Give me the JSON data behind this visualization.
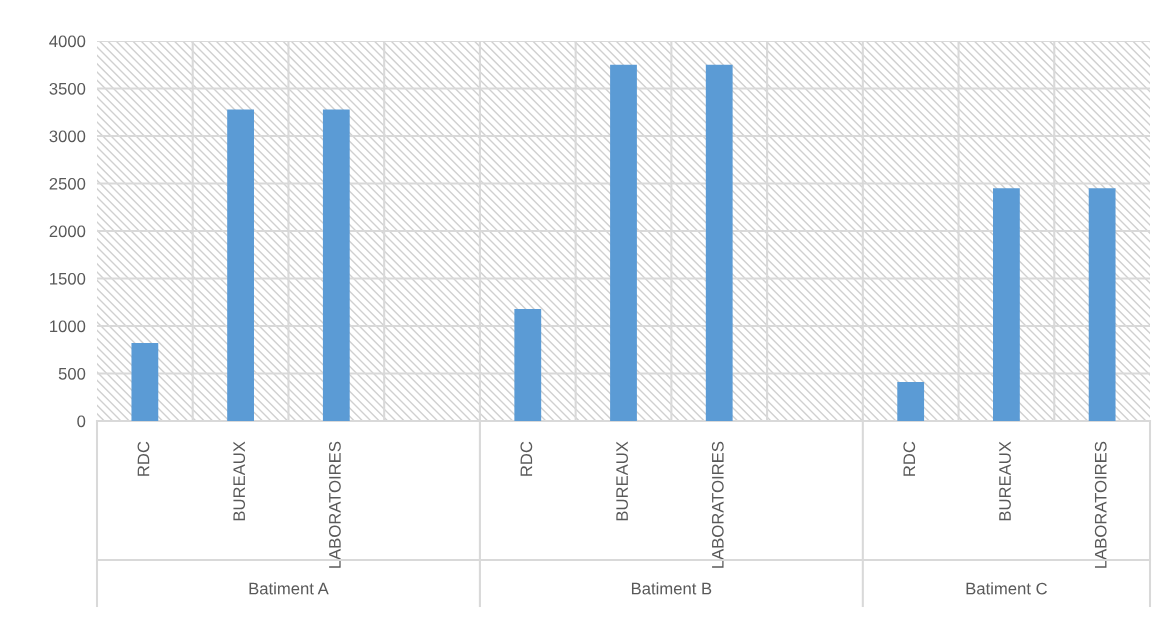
{
  "chart_data": {
    "type": "bar",
    "categories": [
      "RDC",
      "BUREAUX",
      "LABORATOIRES",
      null,
      "RDC",
      "BUREAUX",
      "LABORATOIRES",
      null,
      "RDC",
      "BUREAUX",
      "LABORATOIRES"
    ],
    "values": [
      820,
      3280,
      3280,
      null,
      1180,
      3750,
      3750,
      null,
      410,
      2450,
      2450
    ],
    "color": "#5b9bd5",
    "ylim": [
      0,
      4000
    ],
    "yticks": [
      0,
      500,
      1000,
      1500,
      2000,
      2500,
      3000,
      3500,
      4000
    ],
    "grid": true,
    "annotations": [
      "Batiment A",
      "Batiment B",
      "Batiment C"
    ]
  }
}
